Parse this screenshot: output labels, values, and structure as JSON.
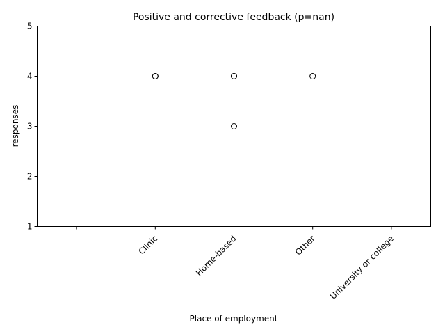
{
  "chart_data": {
    "type": "boxplot",
    "title": "Positive and corrective feedback (p=nan)",
    "xlabel": "Place of employment",
    "ylabel": "responses",
    "ylim": [
      1,
      5
    ],
    "yticks": [
      1,
      2,
      3,
      4,
      5
    ],
    "categories": [
      "",
      "Clinic",
      "Home-based",
      "Other",
      "University or college"
    ],
    "boxes": [
      {
        "category": "",
        "median": null,
        "outliers": []
      },
      {
        "category": "Clinic",
        "median": 5,
        "outliers": [
          4,
          4
        ]
      },
      {
        "category": "Home-based",
        "median": 5,
        "outliers": [
          4,
          4,
          3
        ]
      },
      {
        "category": "Other",
        "median": 5,
        "outliers": [
          4
        ]
      },
      {
        "category": "University or college",
        "median": 5,
        "outliers": []
      }
    ]
  }
}
